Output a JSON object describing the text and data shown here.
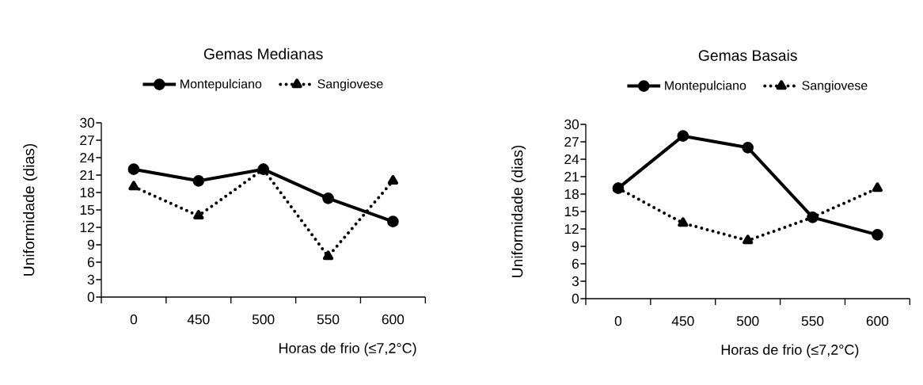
{
  "chart_data": [
    {
      "type": "line",
      "title": "Gemas Medianas",
      "xlabel": "Horas de frio (≤7,2°C)",
      "ylabel": "Uniformidade (dias)",
      "categories": [
        "0",
        "450",
        "500",
        "550",
        "600"
      ],
      "series": [
        {
          "name": "Montepulciano",
          "color": "#000000",
          "values": [
            22,
            20,
            22,
            17,
            13
          ],
          "marker": "circle",
          "line_style": "solid"
        },
        {
          "name": "Sangiovese",
          "color": "#000000",
          "values": [
            19,
            14,
            22,
            7,
            20
          ],
          "marker": "triangle",
          "line_style": "dotted"
        }
      ],
      "ylim": [
        0,
        30
      ],
      "yticks": [
        0,
        3,
        6,
        9,
        12,
        15,
        18,
        21,
        24,
        27,
        30
      ],
      "legend": "top",
      "grid": false
    },
    {
      "type": "line",
      "title": "Gemas Basais",
      "xlabel": "Horas de frio (≤7,2°C)",
      "ylabel": "Uniformidade (dias)",
      "categories": [
        "0",
        "450",
        "500",
        "550",
        "600"
      ],
      "series": [
        {
          "name": "Montepulciano",
          "color": "#000000",
          "values": [
            19,
            28,
            26,
            14,
            11
          ],
          "marker": "circle",
          "line_style": "solid"
        },
        {
          "name": "Sangiovese",
          "color": "#000000",
          "values": [
            19,
            13,
            10,
            14,
            19
          ],
          "marker": "triangle",
          "line_style": "dotted"
        }
      ],
      "ylim": [
        0,
        30
      ],
      "yticks": [
        0,
        3,
        6,
        9,
        12,
        15,
        18,
        21,
        24,
        27,
        30
      ],
      "legend": "top",
      "grid": false
    }
  ]
}
